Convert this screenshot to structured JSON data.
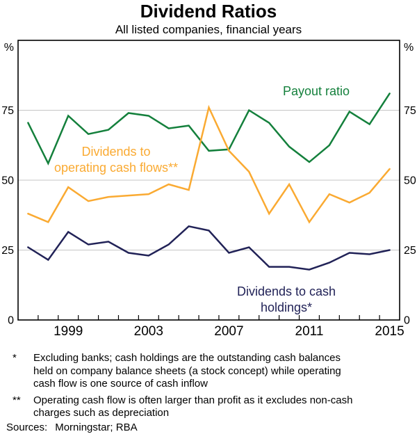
{
  "header": {
    "title": "Dividend Ratios",
    "subtitle": "All listed companies, financial years"
  },
  "axes": {
    "unit_left": "%",
    "unit_right": "%"
  },
  "chart_data": {
    "type": "line",
    "title": "Dividend Ratios",
    "subtitle": "All listed companies, financial years",
    "x": [
      1997,
      1998,
      1999,
      2000,
      2001,
      2002,
      2003,
      2004,
      2005,
      2006,
      2007,
      2008,
      2009,
      2010,
      2011,
      2012,
      2013,
      2014,
      2015
    ],
    "x_tick_labels": [
      "1999",
      "2003",
      "2007",
      "2011",
      "2015"
    ],
    "ylim": [
      0,
      100
    ],
    "yticks": [
      0,
      25,
      50,
      75
    ],
    "y_unit": "%",
    "grid": "horizontal",
    "legend_position": "inline-labels",
    "series": [
      {
        "name": "Payout ratio",
        "color": "#14803c",
        "values": [
          70.5,
          56,
          73,
          66.5,
          68,
          74,
          73,
          68.5,
          69.5,
          60.5,
          61,
          75,
          70.5,
          62,
          56.5,
          62.5,
          74.5,
          70,
          81
        ]
      },
      {
        "name": "Dividends to operating cash flows**",
        "color": "#faaa32",
        "values": [
          38,
          35,
          47.5,
          42.5,
          44,
          44.5,
          45,
          48.5,
          46.5,
          76,
          60.5,
          53,
          38,
          48.5,
          35,
          45,
          42,
          45.5,
          54
        ]
      },
      {
        "name": "Dividends to cash holdings*",
        "color": "#212257",
        "values": [
          26,
          21.5,
          31.5,
          27,
          28,
          24,
          23,
          27,
          33.5,
          32,
          24,
          26,
          19,
          19,
          18,
          20.5,
          24,
          23.5,
          25
        ]
      }
    ]
  },
  "annotations": {
    "payout": "Payout ratio",
    "ocf": "Dividends to\noperating cash flows**",
    "cash": "Dividends to cash holdings*"
  },
  "footnotes": [
    {
      "marker": "*",
      "lines": [
        "Excluding banks; cash holdings are the outstanding cash balances",
        "held on company balance sheets (a stock concept) while operating",
        "cash flow is one source of cash inflow"
      ]
    },
    {
      "marker": "**",
      "lines": [
        "Operating cash flow is often larger than profit as it excludes non-cash",
        "charges such as depreciation"
      ]
    }
  ],
  "sources": {
    "label": "Sources:",
    "text": "Morningstar; RBA"
  },
  "style": {
    "gridline_color": "#c6c6c6",
    "frame_color": "#000000",
    "background": "#ffffff"
  }
}
